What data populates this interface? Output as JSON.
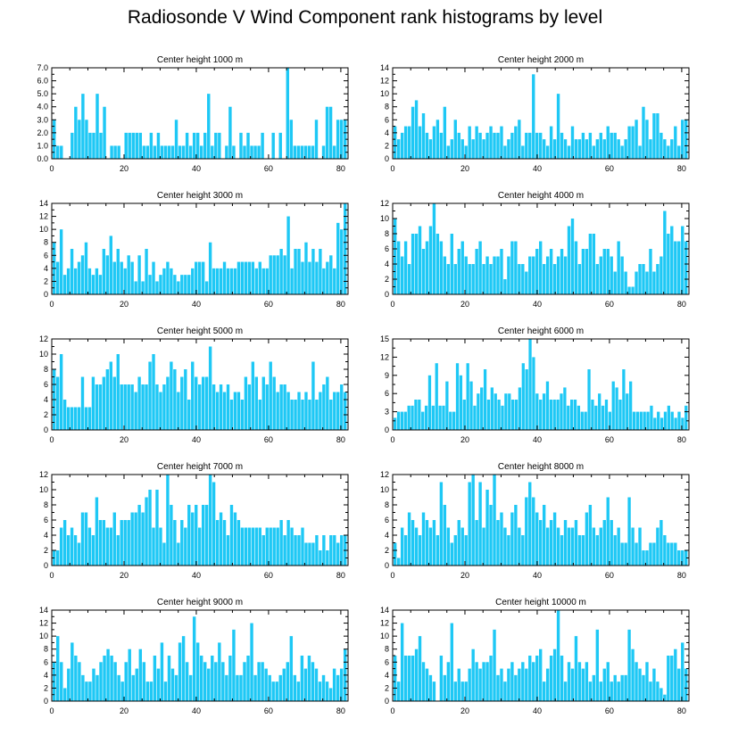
{
  "title": "Radiosonde V Wind Component rank histograms by level",
  "bar_color": "#1ec8f5",
  "chart_data": [
    {
      "type": "bar",
      "title": "Center height 1000 m",
      "xlim": [
        0,
        82
      ],
      "ylim": [
        0,
        7
      ],
      "xticks": [
        0,
        20,
        40,
        60,
        80
      ],
      "yticks": [
        "0.0",
        "1.0",
        "2.0",
        "3.0",
        "4.0",
        "5.0",
        "6.0",
        "7.0"
      ],
      "values": [
        3,
        1,
        1,
        0,
        0,
        2,
        4,
        3,
        5,
        3,
        2,
        2,
        5,
        2,
        4,
        0,
        1,
        1,
        1,
        0,
        2,
        2,
        2,
        2,
        2,
        1,
        1,
        2,
        1,
        2,
        1,
        1,
        1,
        1,
        3,
        1,
        1,
        2,
        1,
        2,
        2,
        1,
        2,
        5,
        1,
        2,
        2,
        0,
        1,
        4,
        1,
        0,
        2,
        1,
        2,
        1,
        1,
        1,
        2,
        0,
        0,
        2,
        0,
        2,
        0,
        7,
        3,
        1,
        1,
        1,
        1,
        1,
        1,
        3,
        0,
        1,
        4,
        4,
        1,
        3,
        3,
        3
      ]
    },
    {
      "type": "bar",
      "title": "Center height 2000 m",
      "xlim": [
        0,
        82
      ],
      "ylim": [
        0,
        14
      ],
      "xticks": [
        0,
        20,
        40,
        60,
        80
      ],
      "yticks": [
        "0",
        "2",
        "4",
        "6",
        "8",
        "10",
        "12",
        "14"
      ],
      "values": [
        5,
        3,
        4,
        5,
        5,
        8,
        9,
        5,
        7,
        4,
        3,
        5,
        6,
        4,
        8,
        2,
        3,
        6,
        4,
        3,
        2,
        5,
        3,
        5,
        4,
        3,
        4,
        5,
        4,
        4,
        5,
        2,
        3,
        4,
        5,
        6,
        2,
        4,
        4,
        13,
        4,
        4,
        3,
        2,
        5,
        3,
        10,
        4,
        3,
        2,
        5,
        3,
        3,
        4,
        3,
        4,
        2,
        3,
        4,
        3,
        5,
        4,
        4,
        3,
        2,
        3,
        5,
        5,
        6,
        2,
        8,
        6,
        3,
        7,
        7,
        4,
        3,
        2,
        3,
        5,
        2,
        6,
        6
      ]
    },
    {
      "type": "bar",
      "title": "Center height 3000 m",
      "xlim": [
        0,
        82
      ],
      "ylim": [
        0,
        14
      ],
      "xticks": [
        0,
        20,
        40,
        60,
        80
      ],
      "yticks": [
        "0",
        "2",
        "4",
        "6",
        "8",
        "10",
        "12",
        "14"
      ],
      "values": [
        8,
        5,
        10,
        3,
        4,
        7,
        4,
        5,
        6,
        8,
        4,
        3,
        4,
        3,
        7,
        6,
        9,
        5,
        7,
        5,
        4,
        6,
        5,
        2,
        6,
        2,
        7,
        3,
        5,
        2,
        3,
        4,
        5,
        4,
        3,
        2,
        3,
        3,
        3,
        4,
        5,
        5,
        5,
        2,
        8,
        4,
        4,
        4,
        5,
        4,
        4,
        4,
        5,
        5,
        5,
        5,
        5,
        4,
        5,
        4,
        4,
        6,
        6,
        6,
        7,
        6,
        12,
        4,
        7,
        7,
        5,
        8,
        5,
        7,
        5,
        7,
        4,
        5,
        6,
        4,
        11,
        10,
        14
      ]
    },
    {
      "type": "bar",
      "title": "Center height 4000 m",
      "xlim": [
        0,
        82
      ],
      "ylim": [
        0,
        12
      ],
      "xticks": [
        0,
        20,
        40,
        60,
        80
      ],
      "yticks": [
        "0",
        "2",
        "4",
        "6",
        "8",
        "10",
        "12"
      ],
      "values": [
        10,
        7,
        5,
        7,
        4,
        8,
        8,
        9,
        6,
        7,
        9,
        12,
        8,
        7,
        5,
        4,
        8,
        4,
        6,
        7,
        5,
        4,
        4,
        6,
        7,
        4,
        5,
        4,
        5,
        5,
        6,
        2,
        5,
        7,
        7,
        4,
        4,
        3,
        5,
        5,
        6,
        7,
        4,
        5,
        6,
        4,
        5,
        6,
        5,
        9,
        10,
        7,
        4,
        6,
        6,
        8,
        8,
        4,
        5,
        6,
        6,
        5,
        3,
        7,
        5,
        3,
        1,
        1,
        3,
        4,
        4,
        3,
        6,
        3,
        4,
        5,
        11,
        8,
        9,
        7,
        7,
        9,
        7
      ]
    },
    {
      "type": "bar",
      "title": "Center height 5000 m",
      "xlim": [
        0,
        82
      ],
      "ylim": [
        0,
        12
      ],
      "xticks": [
        0,
        20,
        40,
        60,
        80
      ],
      "yticks": [
        "0",
        "2",
        "4",
        "6",
        "8",
        "10",
        "12"
      ],
      "values": [
        8,
        7,
        10,
        4,
        3,
        3,
        3,
        3,
        7,
        3,
        3,
        7,
        6,
        6,
        7,
        8,
        9,
        7,
        10,
        6,
        6,
        6,
        6,
        5,
        7,
        6,
        6,
        9,
        10,
        6,
        5,
        6,
        7,
        9,
        8,
        5,
        7,
        8,
        4,
        9,
        7,
        6,
        7,
        7,
        11,
        6,
        5,
        6,
        5,
        6,
        4,
        5,
        5,
        4,
        7,
        6,
        9,
        7,
        4,
        7,
        6,
        9,
        7,
        5,
        6,
        6,
        5,
        4,
        4,
        5,
        4,
        5,
        4,
        9,
        4,
        5,
        6,
        7,
        4,
        5,
        5,
        6,
        5
      ]
    },
    {
      "type": "bar",
      "title": "Center height 6000 m",
      "xlim": [
        0,
        82
      ],
      "ylim": [
        0,
        15
      ],
      "xticks": [
        0,
        20,
        40,
        60,
        80
      ],
      "yticks": [
        "0",
        "3",
        "6",
        "9",
        "12",
        "15"
      ],
      "values": [
        2,
        3,
        3,
        3,
        4,
        4,
        5,
        5,
        3,
        4,
        9,
        4,
        11,
        4,
        4,
        8,
        3,
        3,
        11,
        9,
        5,
        11,
        8,
        4,
        6,
        7,
        10,
        5,
        7,
        6,
        5,
        4,
        6,
        6,
        5,
        5,
        7,
        11,
        10,
        15,
        12,
        6,
        5,
        6,
        8,
        5,
        5,
        5,
        6,
        7,
        4,
        5,
        5,
        4,
        3,
        3,
        10,
        5,
        4,
        6,
        4,
        5,
        3,
        8,
        7,
        5,
        10,
        6,
        8,
        3,
        3,
        3,
        3,
        3,
        4,
        2,
        3,
        2,
        3,
        4,
        3,
        2,
        3,
        2,
        4
      ]
    },
    {
      "type": "bar",
      "title": "Center height 7000 m",
      "xlim": [
        0,
        82
      ],
      "ylim": [
        0,
        12
      ],
      "xticks": [
        0,
        20,
        40,
        60,
        80
      ],
      "yticks": [
        "0",
        "2",
        "4",
        "6",
        "8",
        "10",
        "12"
      ],
      "values": [
        2,
        2,
        5,
        6,
        4,
        5,
        4,
        3,
        7,
        7,
        5,
        4,
        9,
        6,
        6,
        5,
        5,
        7,
        4,
        6,
        6,
        6,
        7,
        7,
        8,
        7,
        9,
        10,
        5,
        10,
        5,
        3,
        12,
        8,
        6,
        3,
        6,
        5,
        8,
        7,
        8,
        5,
        8,
        8,
        12,
        11,
        6,
        7,
        6,
        4,
        8,
        7,
        6,
        5,
        5,
        5,
        5,
        5,
        5,
        4,
        5,
        5,
        5,
        5,
        6,
        4,
        6,
        5,
        4,
        4,
        5,
        3,
        3,
        3,
        4,
        2,
        4,
        2,
        4,
        4,
        3,
        4,
        4
      ]
    },
    {
      "type": "bar",
      "title": "Center height 8000 m",
      "xlim": [
        0,
        82
      ],
      "ylim": [
        0,
        12
      ],
      "xticks": [
        0,
        20,
        40,
        60,
        80
      ],
      "yticks": [
        "0",
        "2",
        "4",
        "6",
        "8",
        "10",
        "12"
      ],
      "values": [
        3,
        1,
        5,
        4,
        7,
        6,
        5,
        4,
        7,
        6,
        5,
        6,
        4,
        11,
        8,
        5,
        3,
        4,
        6,
        5,
        4,
        11,
        12,
        6,
        11,
        5,
        10,
        8,
        12,
        6,
        7,
        5,
        4,
        7,
        8,
        5,
        4,
        9,
        11,
        9,
        7,
        6,
        8,
        5,
        6,
        7,
        5,
        4,
        6,
        5,
        5,
        6,
        4,
        4,
        7,
        8,
        5,
        4,
        5,
        6,
        9,
        6,
        4,
        5,
        3,
        3,
        9,
        5,
        3,
        5,
        2,
        2,
        3,
        3,
        5,
        6,
        4,
        3,
        3,
        3,
        2,
        2,
        2
      ]
    },
    {
      "type": "bar",
      "title": "Center height 9000 m",
      "xlim": [
        0,
        82
      ],
      "ylim": [
        0,
        14
      ],
      "xticks": [
        0,
        20,
        40,
        60,
        80
      ],
      "yticks": [
        "0",
        "2",
        "4",
        "6",
        "8",
        "10",
        "12",
        "14"
      ],
      "values": [
        6,
        10,
        6,
        2,
        5,
        9,
        7,
        6,
        4,
        3,
        3,
        5,
        4,
        6,
        7,
        8,
        7,
        6,
        4,
        3,
        6,
        8,
        4,
        5,
        8,
        6,
        3,
        3,
        7,
        5,
        9,
        3,
        7,
        5,
        4,
        9,
        10,
        6,
        4,
        13,
        9,
        7,
        6,
        5,
        7,
        6,
        9,
        6,
        4,
        7,
        11,
        4,
        4,
        6,
        7,
        12,
        4,
        6,
        6,
        5,
        4,
        3,
        3,
        4,
        5,
        6,
        10,
        4,
        3,
        7,
        5,
        7,
        6,
        5,
        3,
        4,
        3,
        2,
        5,
        4,
        5,
        8
      ]
    },
    {
      "type": "bar",
      "title": "Center height 10000 m",
      "xlim": [
        0,
        82
      ],
      "ylim": [
        0,
        14
      ],
      "xticks": [
        0,
        20,
        40,
        60,
        80
      ],
      "yticks": [
        "0",
        "2",
        "4",
        "6",
        "8",
        "10",
        "12",
        "14"
      ],
      "values": [
        7,
        3,
        12,
        7,
        7,
        7,
        8,
        10,
        6,
        5,
        4,
        3,
        0,
        7,
        4,
        6,
        12,
        3,
        5,
        3,
        3,
        5,
        8,
        6,
        5,
        6,
        6,
        7,
        11,
        4,
        5,
        3,
        5,
        6,
        4,
        5,
        6,
        5,
        7,
        6,
        7,
        8,
        3,
        5,
        7,
        8,
        14,
        7,
        3,
        6,
        5,
        10,
        6,
        5,
        6,
        3,
        4,
        11,
        3,
        5,
        6,
        3,
        4,
        3,
        4,
        4,
        11,
        8,
        6,
        5,
        4,
        6,
        3,
        5,
        3,
        2,
        1,
        7,
        7,
        8,
        5,
        9,
        5
      ]
    }
  ]
}
